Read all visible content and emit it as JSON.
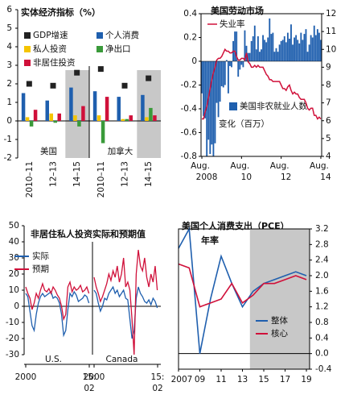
{
  "chart_data": [
    {
      "type": "bar",
      "title": "实体经济指标（%）",
      "categories": [
        "2010–11",
        "12–13",
        "14–15",
        "2010–11",
        "12–13",
        "14–15"
      ],
      "group_labels": [
        "美国",
        "加拿大"
      ],
      "shaded": [
        2,
        5
      ],
      "ylim": [
        -2,
        6
      ],
      "yticks": [
        -2,
        -1,
        0,
        1,
        2,
        3,
        4,
        5,
        6
      ],
      "series": [
        {
          "name": "GDP增速",
          "color": "#222222",
          "marker": "square",
          "values": [
            2.0,
            1.9,
            2.6,
            2.8,
            1.9,
            2.3
          ]
        },
        {
          "name": "个人消费",
          "color": "#1f5fae",
          "values": [
            1.5,
            1.1,
            1.8,
            1.6,
            1.3,
            1.4
          ]
        },
        {
          "name": "私人投资",
          "color": "#f5c400",
          "values": [
            0.2,
            0.4,
            0.3,
            0.3,
            0.1,
            0.2
          ]
        },
        {
          "name": "净出口",
          "color": "#3a9a3a",
          "values": [
            -0.3,
            -0.1,
            -0.3,
            -1.2,
            0.1,
            0.7
          ]
        },
        {
          "name": "非居住投资",
          "color": "#d0103a",
          "values": [
            0.6,
            0.4,
            0.8,
            1.3,
            0.3,
            0.3
          ]
        }
      ]
    },
    {
      "type": "bar_line",
      "title": "美国劳动市场",
      "categories": [
        "Aug. 2008",
        null,
        null,
        null,
        null,
        null,
        null,
        null,
        null,
        null,
        null,
        null,
        null,
        null,
        null,
        null,
        null,
        null,
        null,
        null,
        null,
        null,
        null,
        null,
        "Aug. 10",
        null,
        null,
        null,
        null,
        null,
        null,
        null,
        null,
        null,
        null,
        null,
        null,
        null,
        null,
        null,
        null,
        null,
        null,
        null,
        null,
        null,
        null,
        null,
        "Aug. 12",
        null,
        null,
        null,
        null,
        null,
        null,
        null,
        null,
        null,
        null,
        null,
        null,
        null,
        null,
        null,
        null,
        null,
        null,
        null,
        null,
        null,
        null,
        null,
        "Aug. 14"
      ],
      "ylim": [
        -0.8,
        0.4
      ],
      "yticks": [
        -0.8,
        -0.6,
        -0.4,
        -0.2,
        0,
        0.2,
        0.4
      ],
      "y2lim": [
        4,
        12
      ],
      "y2ticks": [
        4,
        5,
        6,
        7,
        8,
        9,
        10,
        11,
        12
      ],
      "series": [
        {
          "name": "美国非农就业人数变化（百万）",
          "color": "#1f5fae",
          "type": "bar",
          "values": [
            -0.27,
            -0.46,
            -0.48,
            -0.8,
            -0.66,
            -0.78,
            -0.7,
            -0.8,
            -0.69,
            -0.35,
            -0.47,
            -0.34,
            -0.21,
            -0.22,
            -0.2,
            0.01,
            -0.27,
            -0.04,
            -0.05,
            0.17,
            0.25,
            0.25,
            -0.13,
            -0.07,
            -0.03,
            -0.05,
            0.26,
            0.13,
            0.07,
            0.07,
            0.17,
            0.21,
            0.3,
            0.1,
            0.21,
            0.08,
            0.1,
            0.22,
            0.18,
            0.16,
            0.2,
            0.36,
            0.23,
            0.24,
            0.08,
            0.11,
            0.08,
            0.14,
            0.17,
            0.18,
            0.21,
            0.16,
            0.24,
            0.19,
            0.31,
            0.14,
            0.2,
            0.22,
            0.18,
            0.15,
            0.24,
            0.18,
            0.23,
            0.27,
            0.08,
            0.14,
            0.22,
            0.2,
            0.3,
            0.22,
            0.27,
            0.24,
            0.18
          ]
        },
        {
          "name": "失业率",
          "color": "#d0103a",
          "type": "line",
          "axis": "y2",
          "values": [
            6.1,
            6.1,
            6.5,
            6.8,
            7.3,
            7.8,
            8.3,
            8.7,
            9.0,
            9.4,
            9.5,
            9.5,
            9.6,
            9.8,
            10.0,
            9.9,
            9.9,
            9.8,
            9.8,
            9.9,
            9.9,
            9.6,
            9.4,
            9.4,
            9.5,
            9.5,
            9.4,
            9.8,
            9.3,
            9.2,
            9.0,
            9.0,
            9.1,
            9.0,
            9.1,
            9.0,
            9.0,
            9.0,
            8.8,
            8.6,
            8.5,
            8.3,
            8.3,
            8.2,
            8.2,
            8.2,
            8.2,
            8.2,
            8.0,
            7.8,
            7.8,
            7.7,
            7.9,
            8.0,
            7.7,
            7.5,
            7.6,
            7.5,
            7.5,
            7.3,
            7.2,
            7.2,
            7.2,
            7.0,
            6.7,
            6.6,
            6.7,
            6.7,
            6.3,
            6.3,
            6.1,
            6.2,
            6.1
          ]
        }
      ]
    },
    {
      "type": "line",
      "title": "非居住私人投资实际和预期值",
      "ylim": [
        -30,
        50
      ],
      "yticks": [
        -30,
        -20,
        -10,
        0,
        10,
        20,
        30,
        40,
        50
      ],
      "series": [
        {
          "name": "实际",
          "color": "#1f5fae"
        },
        {
          "name": "预期",
          "color": "#d0103a"
        }
      ],
      "panels": [
        {
          "label": "U.S.",
          "xlim": [
            2000,
            2015.08
          ],
          "xticks": [
            2000,
            {
              "value": 2015.08,
              "label": "15:02"
            }
          ],
          "x": [
            2000,
            2000.5,
            2001,
            2001.5,
            2002,
            2002.5,
            2003,
            2003.5,
            2004,
            2004.5,
            2005,
            2005.5,
            2006,
            2006.5,
            2007,
            2007.5,
            2008,
            2008.5,
            2009,
            2009.5,
            2010,
            2010.5,
            2011,
            2011.5,
            2012,
            2012.5,
            2013,
            2013.5,
            2014,
            2014.5,
            2015
          ],
          "values": [
            [
              8,
              6,
              -3,
              -12,
              -15,
              -5,
              2,
              6,
              8,
              6,
              7,
              8,
              9,
              5,
              6,
              5,
              2,
              -5,
              -18,
              -15,
              -2,
              8,
              6,
              9,
              7,
              3,
              4,
              5,
              7,
              6,
              2
            ],
            [
              12,
              8,
              5,
              -2,
              2,
              8,
              5,
              10,
              14,
              10,
              9,
              11,
              8,
              12,
              10,
              7,
              5,
              0,
              -8,
              -5,
              12,
              15,
              9,
              12,
              10,
              11,
              13,
              9,
              10,
              12,
              8
            ]
          ]
        },
        {
          "label": "Canada",
          "xlim": [
            2000,
            2015.08
          ],
          "xticks": [
            2000,
            {
              "value": 2015.08,
              "label": "15:02"
            }
          ],
          "x": [
            2000,
            2000.5,
            2001,
            2001.5,
            2002,
            2002.5,
            2003,
            2003.5,
            2004,
            2004.5,
            2005,
            2005.5,
            2006,
            2006.5,
            2007,
            2007.5,
            2008,
            2008.5,
            2009,
            2009.5,
            2010,
            2010.5,
            2011,
            2011.5,
            2012,
            2012.5,
            2013,
            2013.5,
            2014,
            2014.5,
            2015
          ],
          "values": [
            [
              10,
              8,
              2,
              -3,
              0,
              5,
              4,
              8,
              10,
              12,
              8,
              10,
              6,
              8,
              10,
              5,
              4,
              -8,
              -20,
              -15,
              5,
              12,
              8,
              6,
              3,
              2,
              4,
              1,
              5,
              3,
              -1
            ],
            [
              18,
              12,
              8,
              3,
              6,
              10,
              14,
              20,
              16,
              22,
              18,
              25,
              15,
              20,
              30,
              12,
              15,
              10,
              -8,
              -30,
              20,
              35,
              25,
              22,
              30,
              18,
              12,
              20,
              15,
              25,
              10
            ]
          ]
        }
      ]
    },
    {
      "type": "line",
      "title": "美国个人消费支出（PCE）",
      "subtitle": "年率",
      "x": [
        2007,
        2008,
        2009,
        2010,
        2011,
        2012,
        2013,
        2014,
        2015,
        2016,
        2017,
        2018,
        2019
      ],
      "xlim": [
        2007,
        2019.3
      ],
      "xticks": [
        2007,
        {
          "value": 2009,
          "label": "09"
        },
        {
          "value": 2011,
          "label": "11"
        },
        {
          "value": 2013,
          "label": "13"
        },
        {
          "value": 2015,
          "label": "15"
        },
        {
          "value": 2017,
          "label": "17"
        },
        {
          "value": 2019,
          "label": "19"
        }
      ],
      "ylim": [
        -0.4,
        3.2
      ],
      "yticks": [
        -0.4,
        {
          "value": 0,
          "label": "0.0"
        },
        0.4,
        0.8,
        1.2,
        1.6,
        {
          "value": 2,
          "label": "2.0"
        },
        2.4,
        2.8,
        3.2
      ],
      "shaded": [
        2013.7,
        2019.3
      ],
      "series": [
        {
          "name": "整体",
          "color": "#1f5fae",
          "values": [
            2.7,
            3.2,
            0.0,
            1.4,
            2.5,
            1.8,
            1.2,
            1.6,
            1.8,
            1.9,
            2.0,
            2.1,
            2.0
          ]
        },
        {
          "name": "核心",
          "color": "#d0103a",
          "values": [
            2.3,
            2.2,
            1.2,
            1.3,
            1.4,
            1.8,
            1.3,
            1.5,
            1.8,
            1.8,
            1.9,
            2.0,
            1.9
          ]
        }
      ]
    }
  ]
}
